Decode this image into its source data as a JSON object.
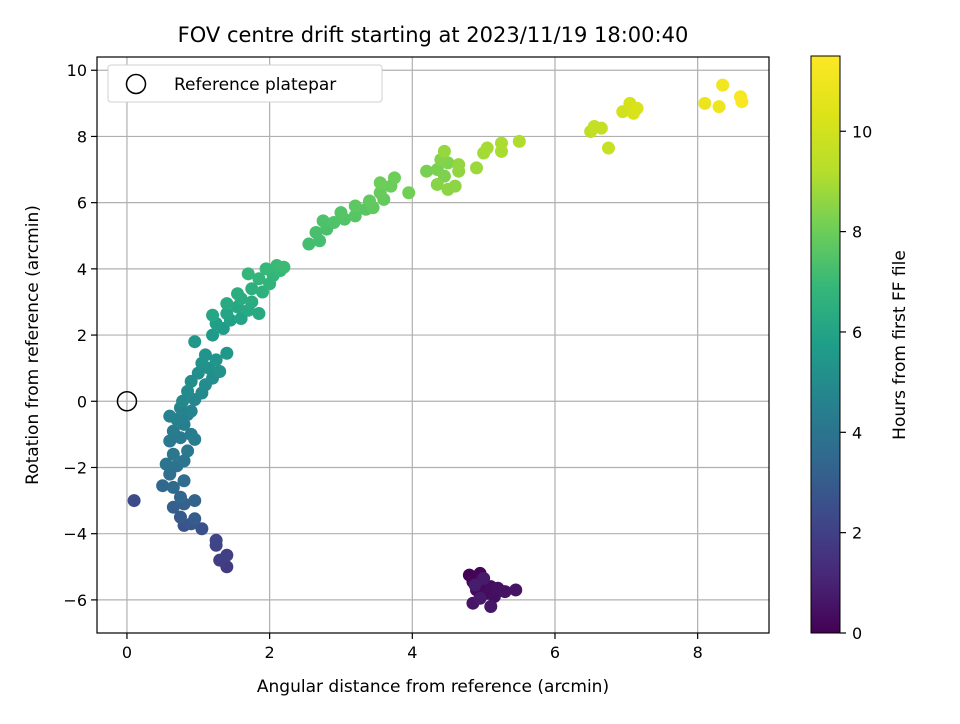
{
  "chart_data": {
    "type": "scatter",
    "title": "FOV centre drift starting at 2023/11/19 18:00:40",
    "xlabel": "Angular distance from reference (arcmin)",
    "ylabel": "Rotation from reference (arcmin)",
    "xlim": [
      -0.42,
      9.0
    ],
    "ylim": [
      -7.0,
      10.4
    ],
    "xticks": [
      0,
      2,
      4,
      6,
      8
    ],
    "xtick_labels": [
      "0",
      "2",
      "4",
      "6",
      "8"
    ],
    "yticks": [
      -6,
      -4,
      -2,
      0,
      2,
      4,
      6,
      8,
      10
    ],
    "ytick_labels": [
      "−6",
      "−4",
      "−2",
      "0",
      "2",
      "4",
      "6",
      "8",
      "10"
    ],
    "grid": true,
    "legend": {
      "position": "top-left",
      "entries": [
        "Reference platepar"
      ]
    },
    "reference_point": {
      "x": 0,
      "y": 0,
      "marker": "open circle",
      "label": "Reference platepar"
    },
    "colorbar": {
      "label": "Hours from first FF file",
      "colormap": "viridis",
      "range": [
        0,
        11.5
      ],
      "ticks": [
        0,
        2,
        4,
        6,
        8,
        10
      ],
      "tick_labels": [
        "0",
        "2",
        "4",
        "6",
        "8",
        "10"
      ]
    },
    "points": [
      {
        "x": 4.8,
        "y": -5.25,
        "c": 0.05
      },
      {
        "x": 4.85,
        "y": -5.45,
        "c": 0.1
      },
      {
        "x": 4.95,
        "y": -5.2,
        "c": 0.15
      },
      {
        "x": 5.0,
        "y": -5.5,
        "c": 0.2
      },
      {
        "x": 4.9,
        "y": -5.7,
        "c": 0.25
      },
      {
        "x": 5.05,
        "y": -5.8,
        "c": 0.3
      },
      {
        "x": 5.1,
        "y": -5.6,
        "c": 0.35
      },
      {
        "x": 5.15,
        "y": -5.9,
        "c": 0.4
      },
      {
        "x": 5.2,
        "y": -5.65,
        "c": 0.45
      },
      {
        "x": 5.3,
        "y": -5.75,
        "c": 0.5
      },
      {
        "x": 5.45,
        "y": -5.7,
        "c": 0.55
      },
      {
        "x": 4.85,
        "y": -6.1,
        "c": 0.6
      },
      {
        "x": 5.1,
        "y": -6.2,
        "c": 0.65
      },
      {
        "x": 4.95,
        "y": -5.95,
        "c": 0.7
      },
      {
        "x": 5.0,
        "y": -5.35,
        "c": 0.75
      },
      {
        "x": 4.88,
        "y": -5.55,
        "c": 0.8
      },
      {
        "x": 1.4,
        "y": -5.0,
        "c": 1.8
      },
      {
        "x": 1.3,
        "y": -4.8,
        "c": 1.9
      },
      {
        "x": 1.4,
        "y": -4.65,
        "c": 2.0
      },
      {
        "x": 1.25,
        "y": -4.35,
        "c": 2.1
      },
      {
        "x": 1.25,
        "y": -4.2,
        "c": 2.2
      },
      {
        "x": 0.1,
        "y": -3.0,
        "c": 2.4
      },
      {
        "x": 1.05,
        "y": -3.85,
        "c": 2.6
      },
      {
        "x": 0.8,
        "y": -3.75,
        "c": 2.7
      },
      {
        "x": 0.9,
        "y": -3.7,
        "c": 2.8
      },
      {
        "x": 0.75,
        "y": -3.5,
        "c": 2.9
      },
      {
        "x": 0.95,
        "y": -3.55,
        "c": 3.0
      },
      {
        "x": 0.65,
        "y": -3.2,
        "c": 3.1
      },
      {
        "x": 0.8,
        "y": -3.1,
        "c": 3.2
      },
      {
        "x": 0.95,
        "y": -3.0,
        "c": 3.3
      },
      {
        "x": 0.75,
        "y": -2.9,
        "c": 3.4
      },
      {
        "x": 0.5,
        "y": -2.55,
        "c": 3.5
      },
      {
        "x": 0.65,
        "y": -2.6,
        "c": 3.6
      },
      {
        "x": 0.8,
        "y": -2.4,
        "c": 3.7
      },
      {
        "x": 0.6,
        "y": -2.2,
        "c": 3.8
      },
      {
        "x": 0.7,
        "y": -1.95,
        "c": 3.9
      },
      {
        "x": 0.55,
        "y": -1.9,
        "c": 4.0
      },
      {
        "x": 0.8,
        "y": -1.8,
        "c": 4.05
      },
      {
        "x": 0.65,
        "y": -1.6,
        "c": 4.1
      },
      {
        "x": 0.85,
        "y": -1.5,
        "c": 4.15
      },
      {
        "x": 0.6,
        "y": -1.2,
        "c": 4.2
      },
      {
        "x": 0.75,
        "y": -1.1,
        "c": 4.25
      },
      {
        "x": 0.9,
        "y": -1.0,
        "c": 4.3
      },
      {
        "x": 0.65,
        "y": -0.9,
        "c": 4.35
      },
      {
        "x": 0.95,
        "y": -1.15,
        "c": 4.4
      },
      {
        "x": 0.8,
        "y": -0.7,
        "c": 4.45
      },
      {
        "x": 0.7,
        "y": -0.55,
        "c": 4.5
      },
      {
        "x": 0.85,
        "y": -0.4,
        "c": 4.55
      },
      {
        "x": 0.6,
        "y": -0.45,
        "c": 4.6
      },
      {
        "x": 0.75,
        "y": -0.2,
        "c": 4.65
      },
      {
        "x": 0.9,
        "y": -0.3,
        "c": 4.7
      },
      {
        "x": 0.95,
        "y": 0.05,
        "c": 4.8
      },
      {
        "x": 0.78,
        "y": 0.0,
        "c": 4.85
      },
      {
        "x": 1.05,
        "y": 0.25,
        "c": 4.9
      },
      {
        "x": 0.85,
        "y": 0.3,
        "c": 4.95
      },
      {
        "x": 1.1,
        "y": 0.5,
        "c": 5.0
      },
      {
        "x": 0.9,
        "y": 0.6,
        "c": 5.05
      },
      {
        "x": 1.2,
        "y": 0.7,
        "c": 5.1
      },
      {
        "x": 1.0,
        "y": 0.85,
        "c": 5.15
      },
      {
        "x": 1.15,
        "y": 1.0,
        "c": 5.2
      },
      {
        "x": 1.3,
        "y": 0.9,
        "c": 5.25
      },
      {
        "x": 1.05,
        "y": 1.15,
        "c": 5.3
      },
      {
        "x": 1.25,
        "y": 1.25,
        "c": 5.35
      },
      {
        "x": 1.1,
        "y": 1.4,
        "c": 5.4
      },
      {
        "x": 1.4,
        "y": 1.45,
        "c": 5.45
      },
      {
        "x": 0.95,
        "y": 1.8,
        "c": 5.5
      },
      {
        "x": 1.2,
        "y": 2.0,
        "c": 5.6
      },
      {
        "x": 1.35,
        "y": 2.2,
        "c": 5.7
      },
      {
        "x": 1.25,
        "y": 2.35,
        "c": 5.8
      },
      {
        "x": 1.45,
        "y": 2.45,
        "c": 5.9
      },
      {
        "x": 1.6,
        "y": 2.5,
        "c": 6.0
      },
      {
        "x": 1.4,
        "y": 2.65,
        "c": 6.05
      },
      {
        "x": 1.2,
        "y": 2.6,
        "c": 6.1
      },
      {
        "x": 1.55,
        "y": 2.85,
        "c": 6.15
      },
      {
        "x": 1.7,
        "y": 2.75,
        "c": 6.2
      },
      {
        "x": 1.85,
        "y": 2.65,
        "c": 6.25
      },
      {
        "x": 1.4,
        "y": 2.95,
        "c": 6.3
      },
      {
        "x": 1.6,
        "y": 3.1,
        "c": 6.35
      },
      {
        "x": 1.75,
        "y": 3.0,
        "c": 6.4
      },
      {
        "x": 1.55,
        "y": 3.25,
        "c": 6.45
      },
      {
        "x": 1.75,
        "y": 3.4,
        "c": 6.55
      },
      {
        "x": 1.9,
        "y": 3.3,
        "c": 6.6
      },
      {
        "x": 2.0,
        "y": 3.55,
        "c": 6.7
      },
      {
        "x": 1.85,
        "y": 3.7,
        "c": 6.75
      },
      {
        "x": 2.05,
        "y": 3.8,
        "c": 6.8
      },
      {
        "x": 1.7,
        "y": 3.85,
        "c": 6.85
      },
      {
        "x": 2.15,
        "y": 3.95,
        "c": 6.9
      },
      {
        "x": 1.95,
        "y": 4.0,
        "c": 6.95
      },
      {
        "x": 2.1,
        "y": 4.1,
        "c": 7.0
      },
      {
        "x": 2.2,
        "y": 4.05,
        "c": 7.05
      },
      {
        "x": 2.55,
        "y": 4.75,
        "c": 7.2
      },
      {
        "x": 2.7,
        "y": 4.85,
        "c": 7.25
      },
      {
        "x": 2.65,
        "y": 5.1,
        "c": 7.3
      },
      {
        "x": 2.8,
        "y": 5.2,
        "c": 7.35
      },
      {
        "x": 2.75,
        "y": 5.45,
        "c": 7.4
      },
      {
        "x": 2.9,
        "y": 5.4,
        "c": 7.45
      },
      {
        "x": 3.05,
        "y": 5.5,
        "c": 7.5
      },
      {
        "x": 3.0,
        "y": 5.7,
        "c": 7.55
      },
      {
        "x": 3.2,
        "y": 5.6,
        "c": 7.6
      },
      {
        "x": 3.35,
        "y": 5.8,
        "c": 7.65
      },
      {
        "x": 3.2,
        "y": 5.9,
        "c": 7.7
      },
      {
        "x": 3.45,
        "y": 5.85,
        "c": 7.75
      },
      {
        "x": 3.4,
        "y": 6.05,
        "c": 7.8
      },
      {
        "x": 3.6,
        "y": 6.1,
        "c": 7.85
      },
      {
        "x": 3.55,
        "y": 6.3,
        "c": 7.9
      },
      {
        "x": 3.7,
        "y": 6.5,
        "c": 7.95
      },
      {
        "x": 3.75,
        "y": 6.75,
        "c": 8.0
      },
      {
        "x": 3.55,
        "y": 6.6,
        "c": 8.0
      },
      {
        "x": 3.95,
        "y": 6.3,
        "c": 8.1
      },
      {
        "x": 4.2,
        "y": 6.95,
        "c": 8.2
      },
      {
        "x": 4.35,
        "y": 7.0,
        "c": 8.25
      },
      {
        "x": 4.45,
        "y": 6.8,
        "c": 8.3
      },
      {
        "x": 4.5,
        "y": 7.2,
        "c": 8.35
      },
      {
        "x": 4.4,
        "y": 7.3,
        "c": 8.4
      },
      {
        "x": 4.35,
        "y": 6.55,
        "c": 8.45
      },
      {
        "x": 4.5,
        "y": 6.4,
        "c": 8.5
      },
      {
        "x": 4.6,
        "y": 6.5,
        "c": 8.55
      },
      {
        "x": 4.65,
        "y": 6.95,
        "c": 8.6
      },
      {
        "x": 4.65,
        "y": 7.15,
        "c": 8.65
      },
      {
        "x": 4.45,
        "y": 7.55,
        "c": 8.7
      },
      {
        "x": 4.9,
        "y": 7.05,
        "c": 8.8
      },
      {
        "x": 5.0,
        "y": 7.5,
        "c": 8.9
      },
      {
        "x": 5.05,
        "y": 7.65,
        "c": 8.95
      },
      {
        "x": 5.25,
        "y": 7.55,
        "c": 9.0
      },
      {
        "x": 5.25,
        "y": 7.8,
        "c": 9.05
      },
      {
        "x": 5.5,
        "y": 7.85,
        "c": 9.1
      },
      {
        "x": 6.5,
        "y": 8.15,
        "c": 9.5
      },
      {
        "x": 6.55,
        "y": 8.3,
        "c": 9.6
      },
      {
        "x": 6.65,
        "y": 8.25,
        "c": 9.65
      },
      {
        "x": 6.75,
        "y": 7.65,
        "c": 9.7
      },
      {
        "x": 6.95,
        "y": 8.75,
        "c": 10.0
      },
      {
        "x": 7.05,
        "y": 9.0,
        "c": 10.1
      },
      {
        "x": 7.1,
        "y": 8.7,
        "c": 10.2
      },
      {
        "x": 7.15,
        "y": 8.85,
        "c": 10.25
      },
      {
        "x": 8.1,
        "y": 9.0,
        "c": 10.9
      },
      {
        "x": 8.3,
        "y": 8.9,
        "c": 11.0
      },
      {
        "x": 8.35,
        "y": 9.55,
        "c": 11.1
      },
      {
        "x": 8.6,
        "y": 9.2,
        "c": 11.3
      },
      {
        "x": 8.62,
        "y": 9.05,
        "c": 11.4
      }
    ]
  }
}
